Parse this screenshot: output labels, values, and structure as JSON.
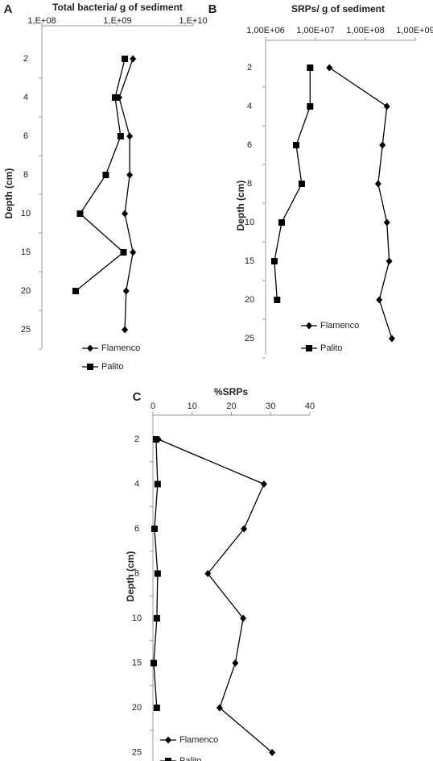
{
  "chart_data": [
    {
      "type": "line",
      "panel_label": "A",
      "title": "Total bacteria/ g of sediment",
      "y_label": "Depth (cm)",
      "categories": [
        "2",
        "4",
        "6",
        "8",
        "10",
        "15",
        "20",
        "25"
      ],
      "log_scale": true,
      "xlim": [
        100000000,
        10000000000
      ],
      "xticks": [
        {
          "value": 100000000,
          "label": "1,E+08"
        },
        {
          "value": 1000000000,
          "label": "1,E+09"
        },
        {
          "value": 10000000000,
          "label": "1,E+10"
        }
      ],
      "legend": "bottom",
      "series": [
        {
          "name": "Flamenco",
          "color": "#000000",
          "marker": "diamond",
          "values": [
            1600000000,
            1050000000,
            1450000000,
            1450000000,
            1250000000,
            1600000000,
            1300000000,
            1250000000
          ]
        },
        {
          "name": "Palito",
          "color": "#000000",
          "marker": "square",
          "values": [
            1250000000,
            930000000,
            1100000000,
            700000000,
            320000000,
            1200000000,
            280000000,
            null
          ]
        }
      ]
    },
    {
      "type": "line",
      "panel_label": "B",
      "title": "SRPs/ g of sediment",
      "y_label": "Depth (cm)",
      "categories": [
        "2",
        "4",
        "6",
        "8",
        "10",
        "15",
        "20",
        "25"
      ],
      "log_scale": true,
      "xlim": [
        1000000,
        1000000000
      ],
      "xticks": [
        {
          "value": 1000000,
          "label": "1,00E+06"
        },
        {
          "value": 10000000,
          "label": "1,00E+07"
        },
        {
          "value": 100000000,
          "label": "1,00E+08"
        },
        {
          "value": 1000000000,
          "label": "1,00E+09"
        }
      ],
      "legend": "bottom",
      "series": [
        {
          "name": "Flamenco",
          "color": "#000000",
          "marker": "diamond",
          "values": [
            19000000,
            270000000,
            220000000,
            180000000,
            270000000,
            300000000,
            190000000,
            340000000
          ]
        },
        {
          "name": "Palito",
          "color": "#000000",
          "marker": "square",
          "values": [
            7800000,
            7800000,
            4100000,
            5300000,
            2100000,
            1500000,
            1700000,
            null
          ]
        }
      ]
    },
    {
      "type": "line",
      "panel_label": "C",
      "title": "%SRPs",
      "y_label": "Depth (cm)",
      "categories": [
        "2",
        "4",
        "6",
        "8",
        "10",
        "15",
        "20",
        "25"
      ],
      "log_scale": false,
      "xlim": [
        0,
        40
      ],
      "xticks": [
        0,
        10,
        20,
        30,
        40
      ],
      "legend": "bottom",
      "series": [
        {
          "name": "Flamenco",
          "color": "#000000",
          "marker": "diamond",
          "values": [
            1.4,
            28.3,
            23.2,
            14,
            23,
            21,
            17,
            30.4
          ]
        },
        {
          "name": "Palito",
          "color": "#000000",
          "marker": "square",
          "values": [
            0.8,
            1.2,
            0.4,
            1.2,
            1,
            0.2,
            1,
            null
          ]
        }
      ]
    }
  ]
}
